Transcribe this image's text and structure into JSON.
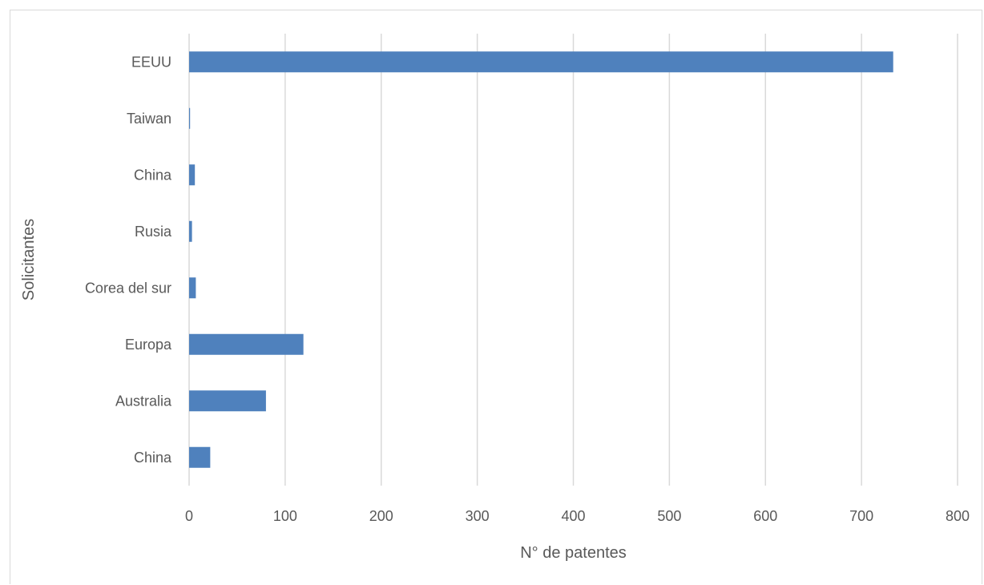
{
  "chart_data": {
    "type": "bar",
    "orientation": "horizontal",
    "title": "",
    "xlabel": "N° de patentes",
    "ylabel": "Solicitantes",
    "categories": [
      "EEUU",
      "Taiwan",
      "China",
      "Rusia",
      "Corea del sur",
      "Europa",
      "Australia",
      "China"
    ],
    "values": [
      733,
      1,
      6,
      3,
      7,
      119,
      80,
      22
    ],
    "xlim": [
      0,
      800
    ],
    "xticks": [
      0,
      100,
      200,
      300,
      400,
      500,
      600,
      700,
      800
    ],
    "grid": "vertical",
    "legend": "none",
    "bar_color": "#4f81bd",
    "grid_color": "#d9d9d9",
    "text_color": "#595959"
  }
}
